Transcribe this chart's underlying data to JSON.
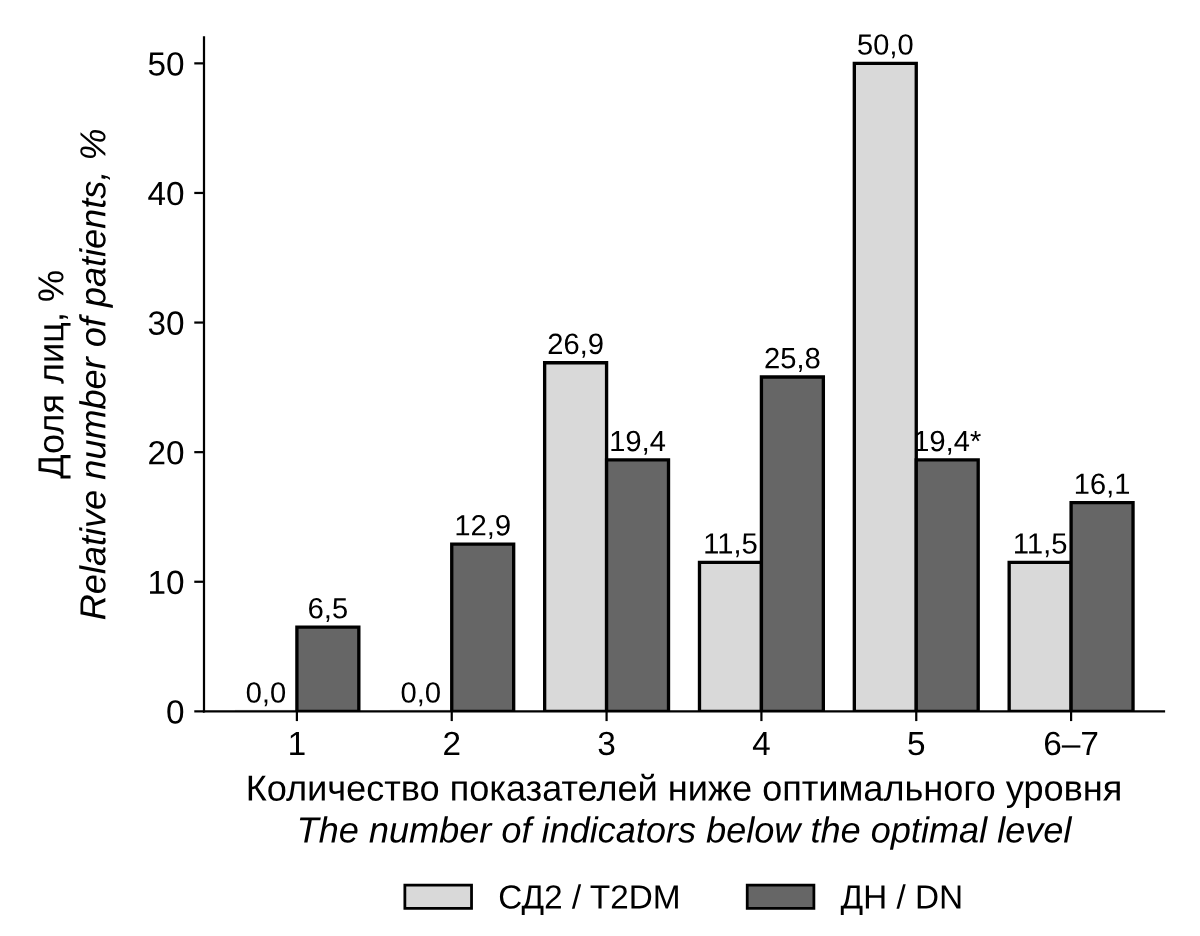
{
  "chart_data": {
    "type": "bar",
    "categories": [
      "1",
      "2",
      "3",
      "4",
      "5",
      "6–7"
    ],
    "xlabel": "Количество показателей ниже оптимального уровня\nThe number of indicators below the optimal level",
    "ylabel": "Доля лиц, %\nRelative number of patients, %",
    "series": [
      {
        "name": "СД2 / T2DM",
        "color": "#d9d9d9",
        "values": [
          0.0,
          0.0,
          26.9,
          11.5,
          50.0,
          11.5
        ],
        "value_labels": [
          "0,0",
          "0,0",
          "26,9",
          "11,5",
          "50,0",
          "11,5"
        ]
      },
      {
        "name": "ДН / DN",
        "color": "#666666",
        "values": [
          6.5,
          12.9,
          19.4,
          25.8,
          19.4,
          16.1
        ],
        "value_labels": [
          "6,5",
          "12,9",
          "19,4",
          "25,8",
          "19,4*",
          "16,1"
        ]
      }
    ],
    "ylim": [
      0,
      52
    ],
    "yticks": [
      0,
      10,
      20,
      30,
      40,
      50
    ],
    "grid": false,
    "legend": "bottom"
  }
}
